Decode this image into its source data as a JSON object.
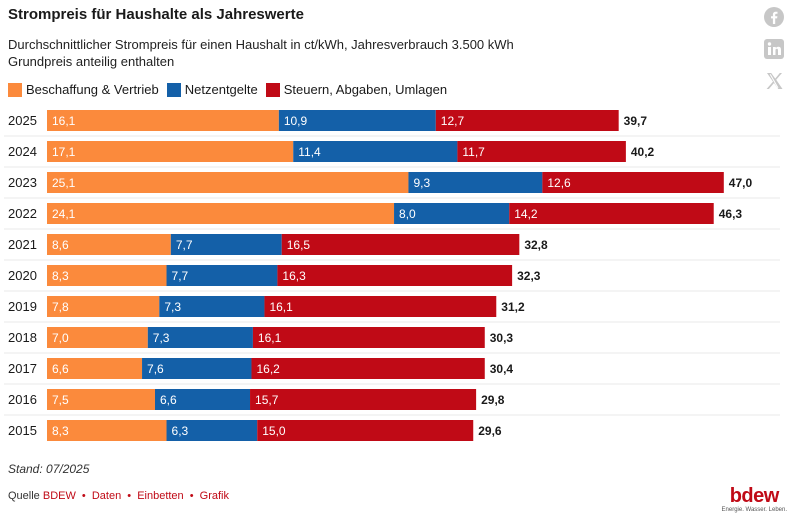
{
  "header": {
    "title": "Strompreis für Haushalte als Jahreswerte",
    "subtitle_line1": "Durchschnittlicher Strompreis für einen Haushalt in ct/kWh, Jahresverbrauch 3.500 kWh",
    "subtitle_line2": "Grundpreis anteilig enthalten"
  },
  "share_icons": [
    "facebook-icon",
    "linkedin-icon",
    "x-icon"
  ],
  "footer": {
    "note": "Stand: 07/2025",
    "source_label": "Quelle",
    "source_name": "BDEW",
    "links": [
      "Daten",
      "Einbetten",
      "Grafik"
    ],
    "logo_word": "bdew",
    "logo_tagline": "Energie. Wasser. Leben."
  },
  "colors": {
    "orange": "#fb8a3c",
    "blue": "#1460a8",
    "red": "#c00a16",
    "accent": "#c00a16"
  },
  "chart_data": {
    "type": "bar",
    "orientation": "horizontal",
    "stacked": true,
    "title": "Strompreis für Haushalte als Jahreswerte",
    "subtitle": "Durchschnittlicher Strompreis für einen Haushalt in ct/kWh, Jahresverbrauch 3.500 kWh – Grundpreis anteilig enthalten",
    "categories": [
      "2025",
      "2024",
      "2023",
      "2022",
      "2021",
      "2020",
      "2019",
      "2018",
      "2017",
      "2016",
      "2015"
    ],
    "series": [
      {
        "name": "Beschaffung & Vertrieb",
        "color": "#fb8a3c",
        "values": [
          16.1,
          17.1,
          25.1,
          24.1,
          8.6,
          8.3,
          7.8,
          7.0,
          6.6,
          7.5,
          8.3
        ],
        "labels": [
          "16,1",
          "17,1",
          "25,1",
          "24,1",
          "8,6",
          "8,3",
          "7,8",
          "7,0",
          "6,6",
          "7,5",
          "8,3"
        ]
      },
      {
        "name": "Netzentgelte",
        "color": "#1460a8",
        "values": [
          10.9,
          11.4,
          9.3,
          8.0,
          7.7,
          7.7,
          7.3,
          7.3,
          7.6,
          6.6,
          6.3
        ],
        "labels": [
          "10,9",
          "11,4",
          "9,3",
          "8,0",
          "7,7",
          "7,7",
          "7,3",
          "7,3",
          "7,6",
          "6,6",
          "6,3"
        ]
      },
      {
        "name": "Steuern, Abgaben, Umlagen",
        "color": "#c00a16",
        "values": [
          12.7,
          11.7,
          12.6,
          14.2,
          16.5,
          16.3,
          16.1,
          16.1,
          16.2,
          15.7,
          15.0
        ],
        "labels": [
          "12,7",
          "11,7",
          "12,6",
          "14,2",
          "16,5",
          "16,3",
          "16,1",
          "16,1",
          "16,2",
          "15,7",
          "15,0"
        ]
      }
    ],
    "totals": [
      39.7,
      40.2,
      47.0,
      46.3,
      32.8,
      32.3,
      31.2,
      30.3,
      30.4,
      29.8,
      29.6
    ],
    "total_labels": [
      "39,7",
      "40,2",
      "47,0",
      "46,3",
      "32,8",
      "32,3",
      "31,2",
      "30,3",
      "30,4",
      "29,8",
      "29,6"
    ],
    "legend_position": "top-left",
    "grid": false
  }
}
